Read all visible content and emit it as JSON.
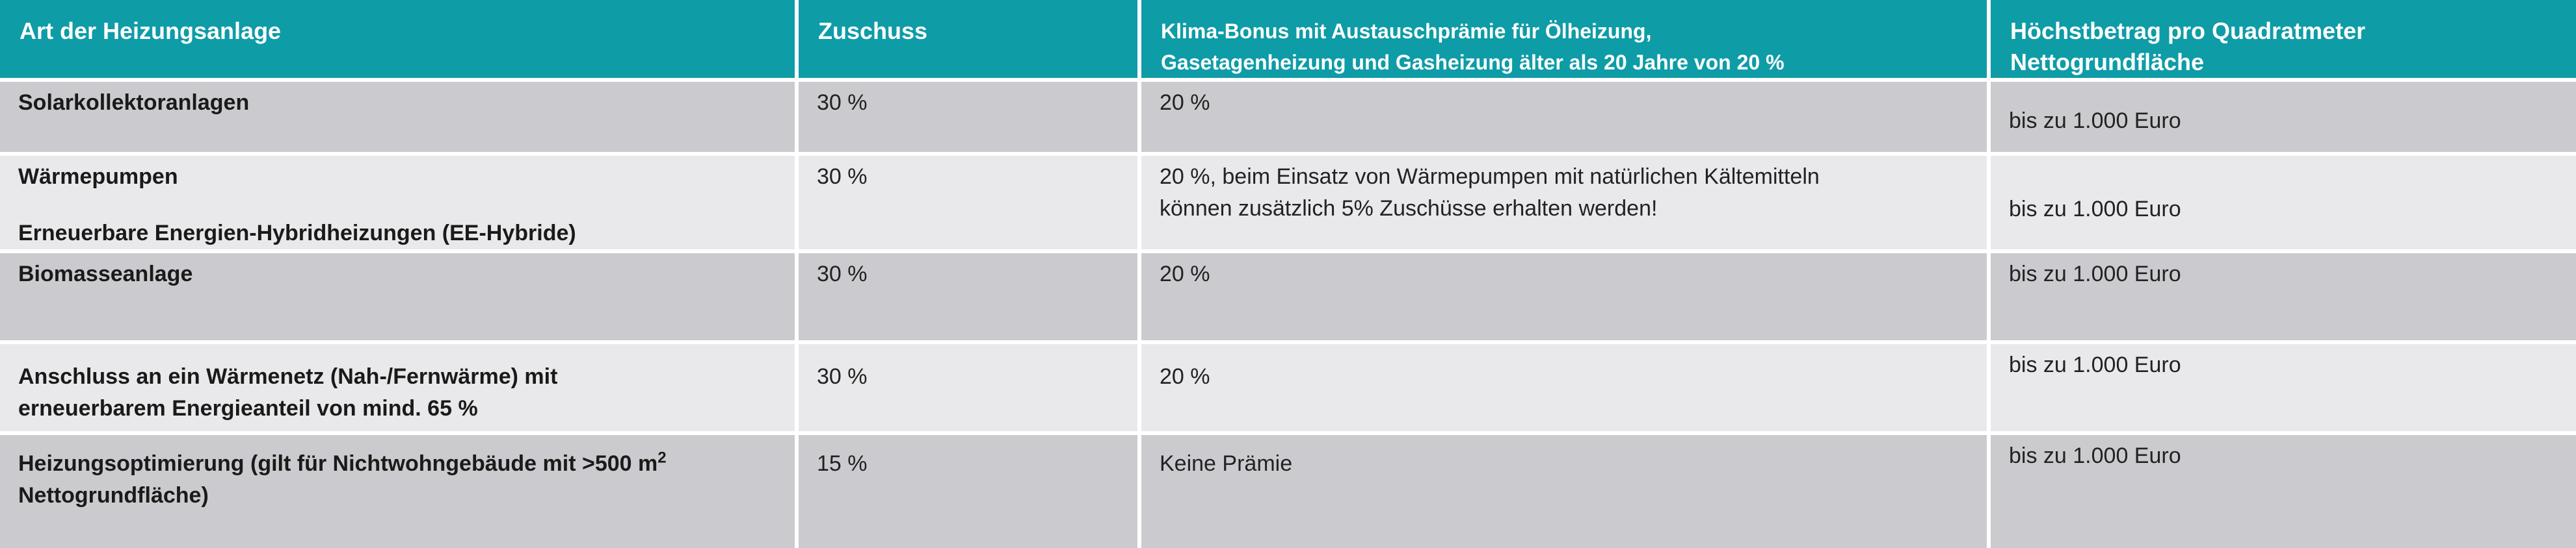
{
  "header": {
    "col_type": "Art der Heizungsanlage",
    "col_grant": "Zuschuss",
    "col_bonus_1": "Klima-Bonus mit Austauschprämie für Ölheizung,",
    "col_bonus_2": "Gasetagenheizung und Gasheizung älter als 20 Jahre von 20 %",
    "col_max_1": "Höchstbetrag pro Quadratmeter",
    "col_max_2": "Nettogrundfläche"
  },
  "rows": [
    {
      "type_1": "Solarkollektoranlagen",
      "grant": "30 %",
      "bonus_1": "20 %",
      "max": "bis zu 1.000 Euro"
    },
    {
      "type_1": "Wärmepumpen",
      "type_2": "Erneuerbare Energien-Hybridheizungen (EE-Hybride)",
      "grant": "30 %",
      "bonus_1": "20 %, beim Einsatz von Wärmepumpen mit natürlichen Kältemitteln",
      "bonus_2": "können zusätzlich 5% Zuschüsse erhalten werden!",
      "max": "bis zu 1.000 Euro"
    },
    {
      "type_1": "Biomasseanlage",
      "grant": "30 %",
      "bonus_1": "20 %",
      "max": "bis zu 1.000 Euro"
    },
    {
      "type_1": "Anschluss an ein Wärmenetz (Nah-/Fernwärme) mit",
      "type_2": "erneuerbarem Energieanteil von mind. 65 %",
      "grant": "30 %",
      "bonus_1": "20 %",
      "max": "bis zu 1.000 Euro"
    },
    {
      "type_1": "Heizungsoptimierung (gilt für Nichtwohngebäude mit >500 m",
      "type_1_sup": "2",
      "type_2": "Nettogrundfläche)",
      "grant": "15 %",
      "bonus_1": "Keine Prämie",
      "max": "bis zu 1.000 Euro"
    }
  ],
  "colors": {
    "header_bg": "#0e9ca7",
    "row_dark": "#cbcbcf",
    "row_light": "#e9e9eb"
  }
}
